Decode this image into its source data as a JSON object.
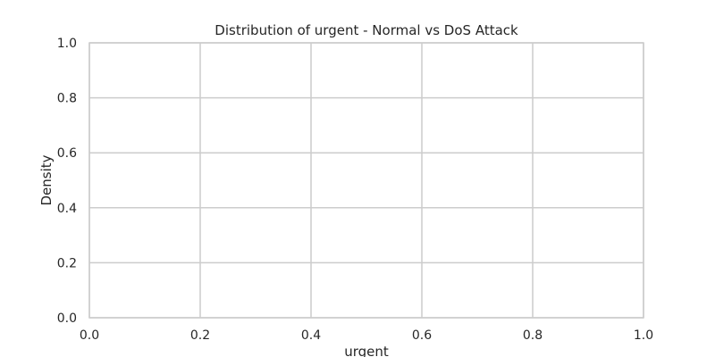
{
  "chart_data": {
    "type": "line",
    "title": "Distribution of urgent - Normal vs DoS Attack",
    "xlabel": "urgent",
    "ylabel": "Density",
    "xlim": [
      0.0,
      1.0
    ],
    "ylim": [
      0.0,
      1.0
    ],
    "xticks": [
      "0.0",
      "0.2",
      "0.4",
      "0.6",
      "0.8",
      "1.0"
    ],
    "yticks": [
      "0.0",
      "0.2",
      "0.4",
      "0.6",
      "0.8",
      "1.0"
    ],
    "xtick_values": [
      0.0,
      0.2,
      0.4,
      0.6,
      0.8,
      1.0
    ],
    "ytick_values": [
      0.0,
      0.2,
      0.4,
      0.6,
      0.8,
      1.0
    ],
    "grid": true,
    "series": [],
    "colors": {
      "grid": "#cccccc",
      "spine": "#cccccc",
      "text": "#262626",
      "background": "#ffffff"
    }
  }
}
